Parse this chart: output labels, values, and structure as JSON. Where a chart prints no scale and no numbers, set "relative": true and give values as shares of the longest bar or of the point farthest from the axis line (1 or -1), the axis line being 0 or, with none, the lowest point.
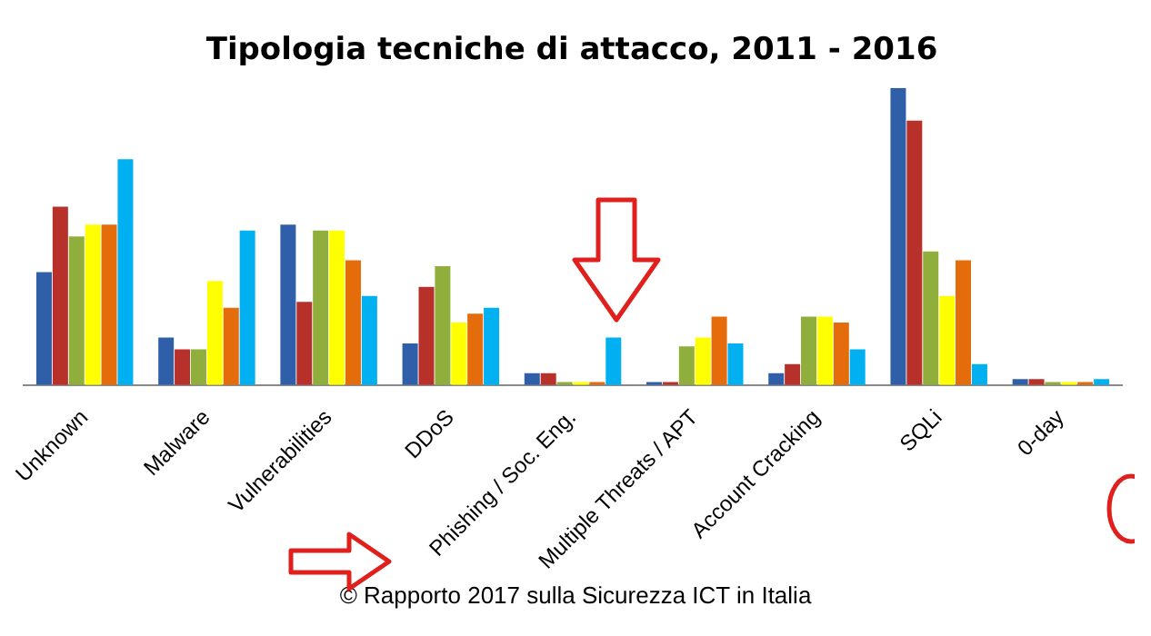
{
  "chart_data": {
    "type": "bar",
    "title": "Tipologia tecniche di attacco, 2011 - 2016",
    "relative": true,
    "categories": [
      "Unknown",
      "Malware",
      "Vulnerabilities",
      "DDoS",
      "Phishing / Soc. Eng.",
      "Multiple Threats / APT",
      "Account Cracking",
      "SQLi",
      "0-day"
    ],
    "series": [
      {
        "color": "#2e5fa8",
        "values": [
          0.38,
          0.16,
          0.54,
          0.14,
          0.04,
          0.01,
          0.04,
          1,
          0.02
        ]
      },
      {
        "color": "#b8302a",
        "values": [
          0.6,
          0.12,
          0.28,
          0.33,
          0.04,
          0.01,
          0.07,
          0.89,
          0.02
        ]
      },
      {
        "color": "#8fae3c",
        "values": [
          0.5,
          0.12,
          0.52,
          0.4,
          0.01,
          0.13,
          0.23,
          0.45,
          0.01
        ]
      },
      {
        "color": "#ffff00",
        "values": [
          0.54,
          0.35,
          0.52,
          0.21,
          0.01,
          0.16,
          0.23,
          0.3,
          0.01
        ]
      },
      {
        "color": "#e46c0a",
        "values": [
          0.54,
          0.26,
          0.42,
          0.24,
          0.01,
          0.23,
          0.21,
          0.42,
          0.01
        ]
      },
      {
        "color": "#00b0f0",
        "values": [
          0.76,
          0.52,
          0.3,
          0.26,
          0.16,
          0.14,
          0.12,
          0.07,
          0.02
        ]
      }
    ],
    "annotations": [
      "© Rapporto 2017 sulla Sicurezza ICT in Italia"
    ]
  }
}
